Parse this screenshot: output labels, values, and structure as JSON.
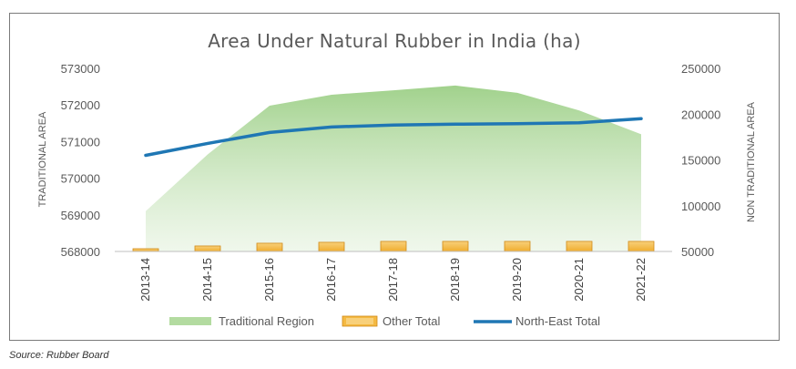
{
  "source_note": "Source: Rubber Board",
  "chart_data": {
    "type": "area",
    "title": "Area Under Natural Rubber in India (ha)",
    "categories": [
      "2013-14",
      "2014-15",
      "2015-16",
      "2016-17",
      "2017-18",
      "2018-19",
      "2019-20",
      "2020-21",
      "2021-22"
    ],
    "y_left": {
      "label": "TRADITIONAL AREA",
      "ticks": [
        568000,
        569000,
        570000,
        571000,
        572000,
        573000
      ],
      "range": [
        568000,
        573000
      ]
    },
    "y_right": {
      "label": "NON TRADITIONAL AREA",
      "ticks": [
        50000,
        100000,
        150000,
        200000,
        250000
      ],
      "range": [
        50000,
        250000
      ]
    },
    "series": [
      {
        "name": "Traditional Region",
        "type": "area",
        "axis": "left",
        "color": "#9ccf86",
        "values": [
          569100,
          570650,
          571980,
          572280,
          572400,
          572530,
          572330,
          571850,
          571200
        ]
      },
      {
        "name": "Other Total",
        "type": "bar",
        "axis": "right",
        "color": "#f4b942",
        "values": [
          53000,
          56000,
          59000,
          60000,
          61000,
          61000,
          61000,
          61000,
          61000
        ]
      },
      {
        "name": "North-East Total",
        "type": "line",
        "axis": "right",
        "color": "#1f77b4",
        "values": [
          155000,
          168000,
          180000,
          186000,
          188000,
          189000,
          189500,
          190500,
          195000
        ]
      }
    ],
    "legend_position": "bottom",
    "grid": false
  }
}
